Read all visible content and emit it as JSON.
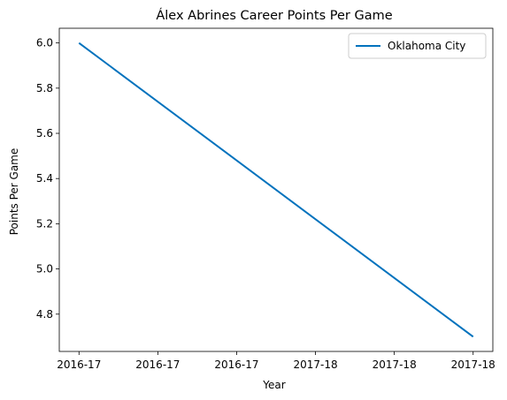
{
  "chart_data": {
    "type": "line",
    "title": "Álex Abrines Career Points Per Game",
    "xlabel": "Year",
    "ylabel": "Points Per Game",
    "x_tick_labels": [
      "2016-17",
      "2016-17",
      "2016-17",
      "2017-18",
      "2017-18",
      "2017-18"
    ],
    "x": [
      0,
      1
    ],
    "x_categories": [
      "2016-17",
      "2017-18"
    ],
    "series": [
      {
        "name": "Oklahoma City",
        "values": [
          6.0,
          4.7
        ],
        "color": "#0072BD"
      }
    ],
    "xlim": [
      -0.05,
      1.05
    ],
    "ylim": [
      4.635,
      6.065
    ],
    "y_ticks": [
      4.8,
      5.0,
      5.2,
      5.4,
      5.6,
      5.8,
      6.0
    ],
    "grid": false,
    "legend_position": "top-right"
  }
}
